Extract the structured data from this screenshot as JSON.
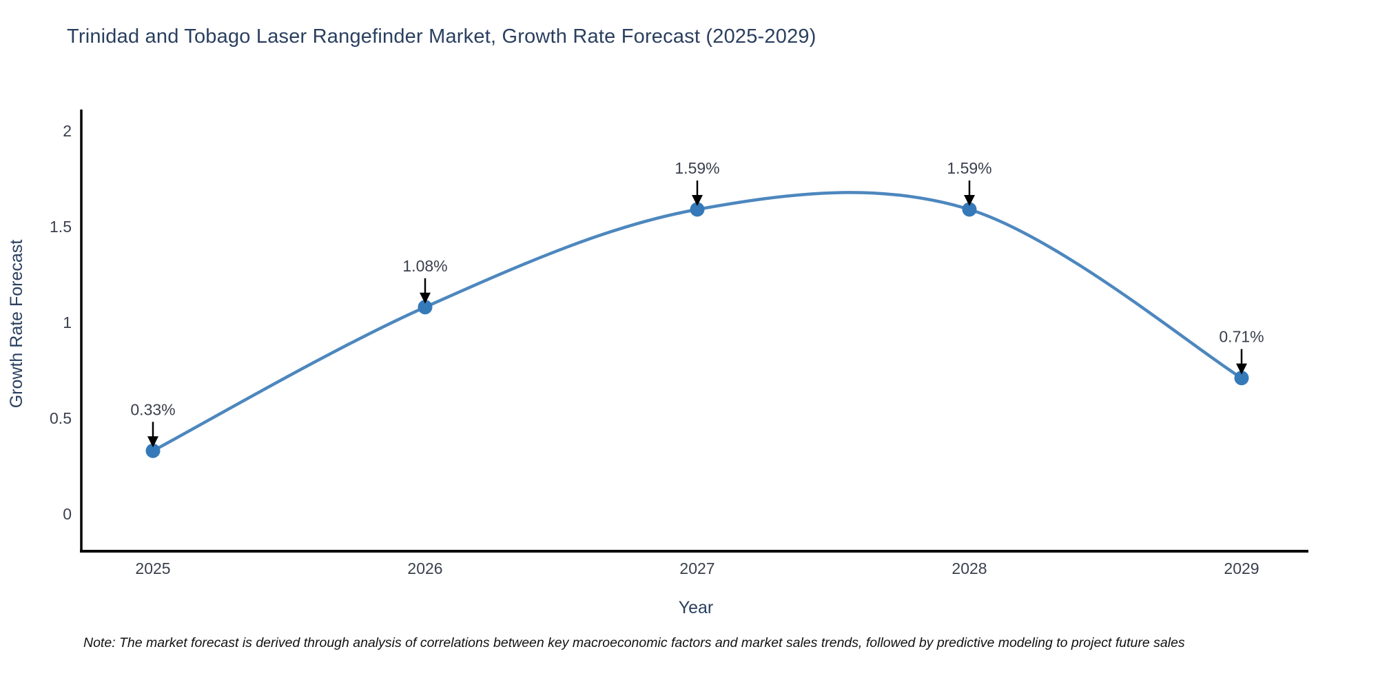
{
  "title": "Trinidad and Tobago Laser Rangefinder Market, Growth Rate Forecast (2025-2029)",
  "note": "Note: The market forecast is derived through analysis of correlations between key macroeconomic factors and market sales trends, followed by predictive modeling to project future sales",
  "chart_data": {
    "type": "line",
    "title": "Trinidad and Tobago Laser Rangefinder Market, Growth Rate Forecast (2025-2029)",
    "categories": [
      "2025",
      "2026",
      "2027",
      "2028",
      "2029"
    ],
    "series": [
      {
        "name": "Growth Rate Forecast",
        "values": [
          0.33,
          1.08,
          1.59,
          1.59,
          0.71
        ],
        "point_labels": [
          "0.33%",
          "1.08%",
          "1.59%",
          "1.59%",
          "0.71%"
        ]
      }
    ],
    "xlabel": "Year",
    "ylabel": "Growth Rate Forecast",
    "ylim": [
      -0.19,
      2.11
    ],
    "yticks": [
      0,
      0.5,
      1,
      1.5,
      2
    ],
    "ytick_labels": [
      "0",
      "0.5",
      "1",
      "1.5",
      "2"
    ],
    "grid": false,
    "legend": "none",
    "line_style": "spline",
    "annotations": "value labels with black down arrows above each point",
    "colors": {
      "line": "#4d87be",
      "marker": "#3579b8",
      "axis": "#000000",
      "title": "#2a3f5f",
      "tick_label": "#3a3f4c",
      "axis_title": "#2a3f5f",
      "annotation_text": "#3a3f4c",
      "arrow": "#000000",
      "background": "#ffffff"
    }
  }
}
